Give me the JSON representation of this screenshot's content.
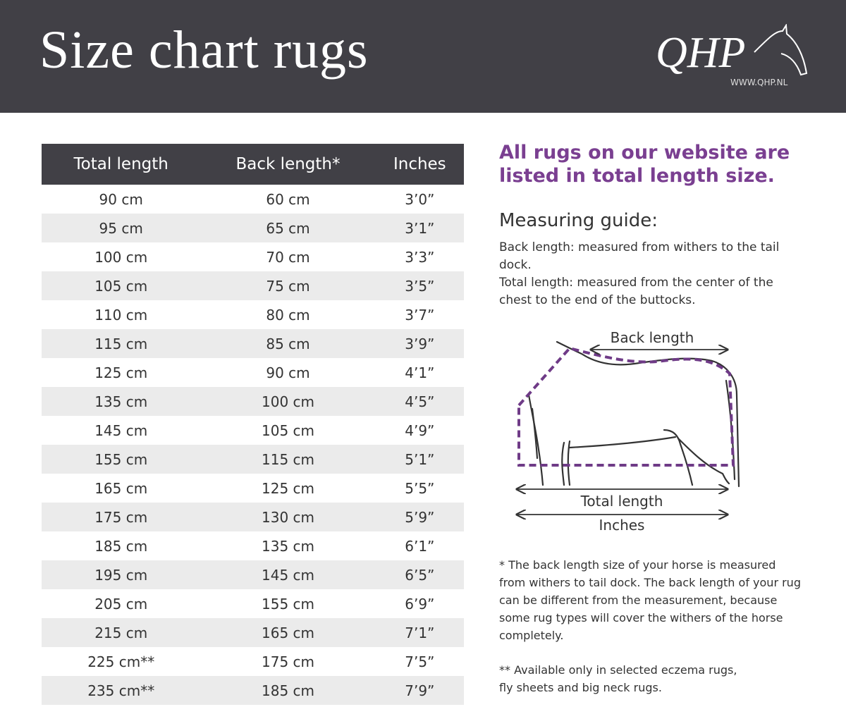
{
  "header": {
    "title": "Size chart rugs",
    "logo": "QHP",
    "website": "WWW.QHP.NL"
  },
  "table": {
    "columns": [
      "Total length",
      "Back length*",
      "Inches"
    ],
    "rows": [
      [
        "90 cm",
        "60 cm",
        "3’0”"
      ],
      [
        "95 cm",
        "65 cm",
        "3’1”"
      ],
      [
        "100 cm",
        "70 cm",
        "3’3”"
      ],
      [
        "105 cm",
        "75 cm",
        "3’5”"
      ],
      [
        "110 cm",
        "80 cm",
        "3’7”"
      ],
      [
        "115 cm",
        "85 cm",
        "3’9”"
      ],
      [
        "125 cm",
        "90 cm",
        "4’1”"
      ],
      [
        "135 cm",
        "100 cm",
        "4’5”"
      ],
      [
        "145 cm",
        "105 cm",
        "4’9”"
      ],
      [
        "155 cm",
        "115 cm",
        "5’1”"
      ],
      [
        "165 cm",
        "125 cm",
        "5’5”"
      ],
      [
        "175 cm",
        "130 cm",
        "5’9”"
      ],
      [
        "185 cm",
        "135 cm",
        "6’1”"
      ],
      [
        "195 cm",
        "145 cm",
        "6’5”"
      ],
      [
        "205 cm",
        "155 cm",
        "6’9”"
      ],
      [
        "215 cm",
        "165 cm",
        "7’1”"
      ],
      [
        "225 cm**",
        "175 cm",
        "7’5”"
      ],
      [
        "235 cm**",
        "185 cm",
        "7’9”"
      ]
    ]
  },
  "info": {
    "headline": "All rugs on our website are listed in total length size.",
    "guide_title": "Measuring guide:",
    "guide": [
      "Back length: measured from withers to the tail dock.",
      "Total length: measured from the center of the chest to the end of the buttocks."
    ],
    "diagram": {
      "back_length": "Back length",
      "total_length": "Total length",
      "inches": "Inches"
    },
    "footnotes": [
      "* The back length size of your horse is measured from withers to tail dock. The back length of your rug can be different from the measurement, because some rug types will cover the withers of the horse completely.",
      "** Available only in selected eczema rugs, fly sheets and big neck rugs."
    ]
  }
}
